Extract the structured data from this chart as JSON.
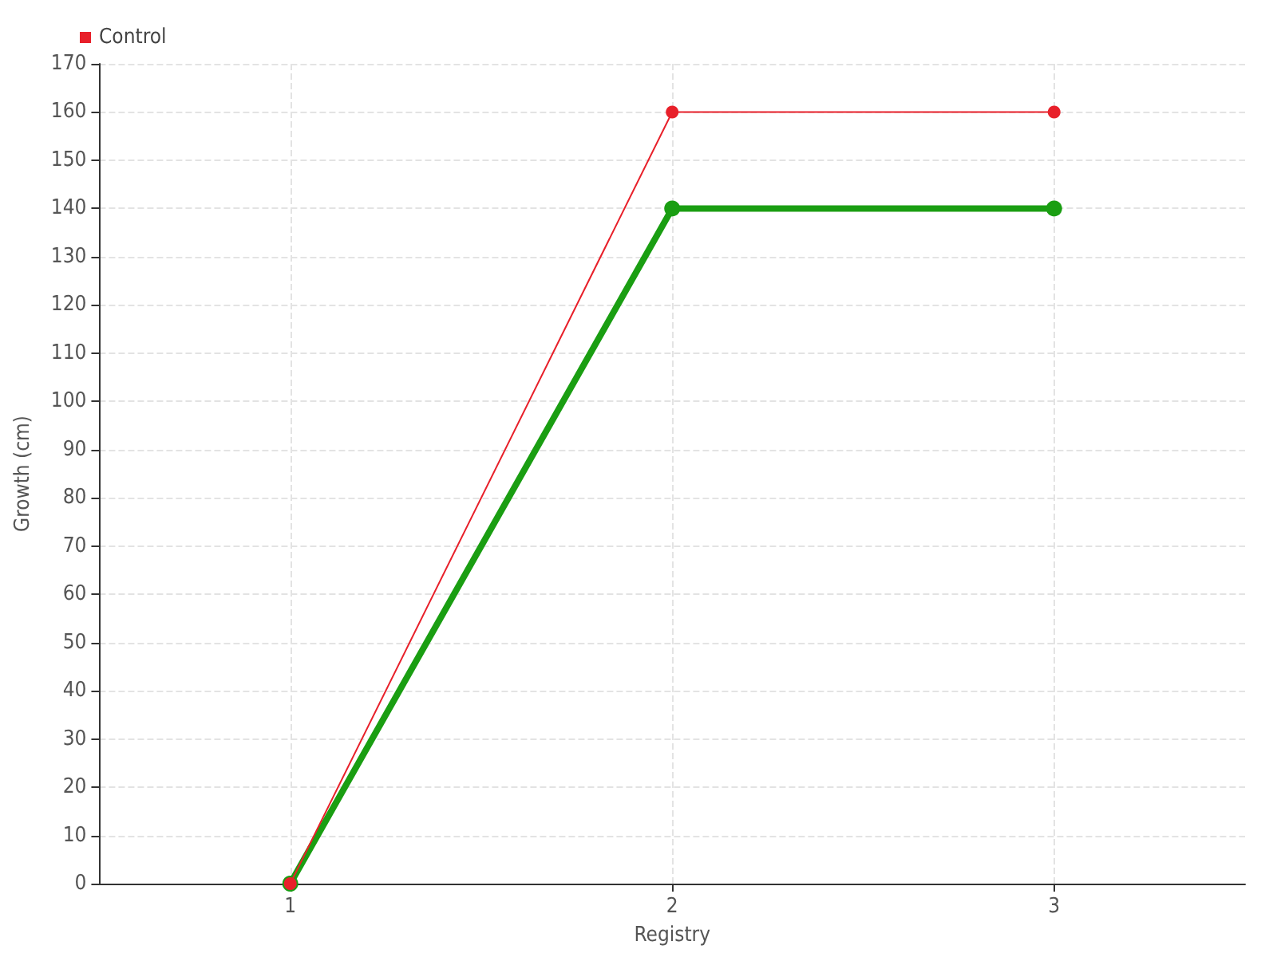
{
  "chart_data": {
    "type": "line",
    "xlabel": "Registry",
    "ylabel": "Growth (cm)",
    "x": [
      1,
      2,
      3
    ],
    "series": [
      {
        "color": "#1a9e12",
        "values": [
          0,
          140,
          140
        ]
      },
      {
        "name": "Control",
        "color": "#e8202a",
        "values": [
          0,
          160,
          160
        ]
      }
    ],
    "xlim": [
      0.5,
      3.5
    ],
    "xticks": [
      1,
      2,
      3
    ],
    "ylim": [
      0,
      170
    ],
    "yticks": [
      0,
      10,
      20,
      30,
      40,
      50,
      60,
      70,
      80,
      90,
      100,
      110,
      120,
      130,
      140,
      150,
      160,
      170
    ],
    "grid": true,
    "legend": "top left",
    "marker": "circle",
    "line_style": "solid"
  }
}
